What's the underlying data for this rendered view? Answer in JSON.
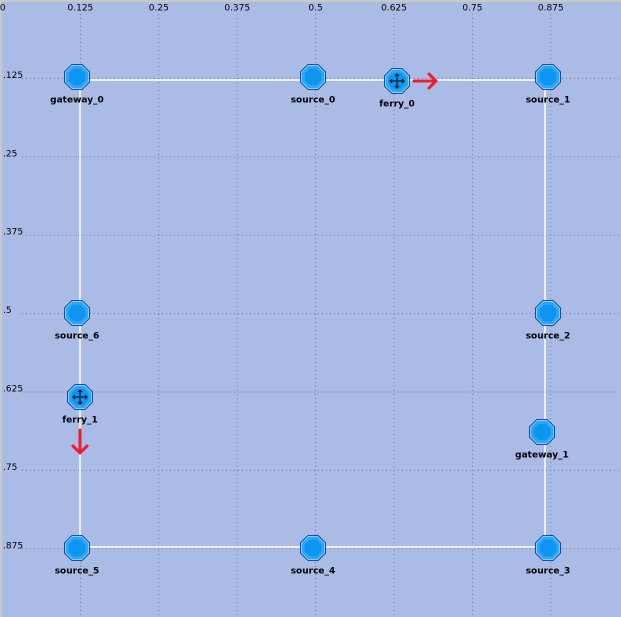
{
  "top_ruler": [
    ".0",
    "0.125",
    "0.25",
    "0.375",
    "0.5",
    "0.625",
    "0.75",
    "0.875"
  ],
  "left_ruler": [
    ".125",
    ".25",
    ".375",
    ".5",
    ".625",
    ".75",
    ".875"
  ],
  "nodes": [
    {
      "label": "gateway_0"
    },
    {
      "label": "source_0"
    },
    {
      "label": "ferry_0"
    },
    {
      "label": "source_1"
    },
    {
      "label": "source_6"
    },
    {
      "label": "ferry_1"
    },
    {
      "label": "source_2"
    },
    {
      "label": "gateway_1"
    },
    {
      "label": "source_5"
    },
    {
      "label": "source_4"
    },
    {
      "label": "source_3"
    }
  ]
}
